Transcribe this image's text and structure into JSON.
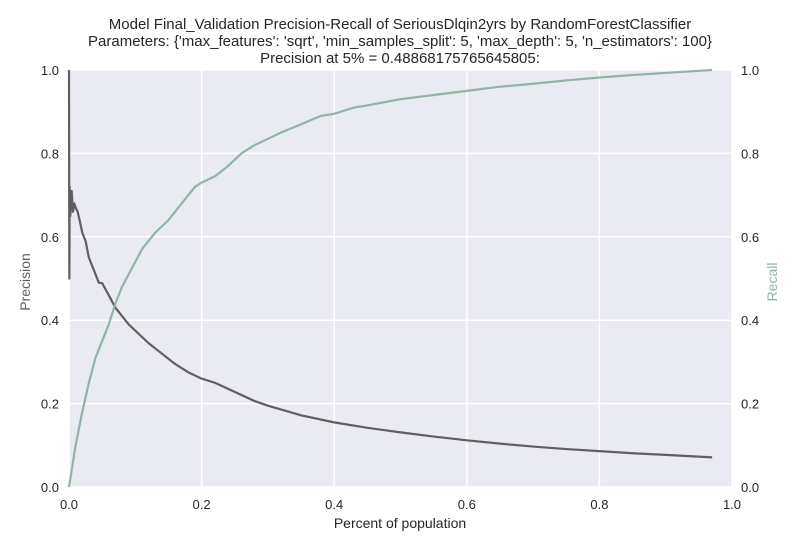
{
  "chart_data": {
    "type": "line",
    "title_lines": [
      "Model Final_Validation Precision-Recall of SeriousDlqin2yrs by RandomForestClassifier",
      "Parameters: {'max_features': 'sqrt', 'min_samples_split': 5, 'max_depth': 5, 'n_estimators': 100}",
      "Precision at 5% = 0.48868175765645805:"
    ],
    "xlabel": "Percent of population",
    "ylabel_left": "Precision",
    "ylabel_right": "Recall",
    "xlim": [
      0.0,
      1.0
    ],
    "ylim_left": [
      0.0,
      1.0
    ],
    "ylim_right": [
      0.0,
      1.0
    ],
    "x_ticks": [
      "0.0",
      "0.2",
      "0.4",
      "0.6",
      "0.8",
      "1.0"
    ],
    "y_ticks_left": [
      "0.0",
      "0.2",
      "0.4",
      "0.6",
      "0.8",
      "1.0"
    ],
    "y_ticks_right": [
      "0.0",
      "0.2",
      "0.4",
      "0.6",
      "0.8",
      "1.0"
    ],
    "grid": true,
    "background": "#eaeaf2",
    "series": [
      {
        "name": "Precision",
        "axis": "left",
        "color": "#5f5f5f",
        "points": [
          [
            0.0,
            1.0
          ],
          [
            0.0005,
            0.5
          ],
          [
            0.001,
            0.72
          ],
          [
            0.002,
            0.65
          ],
          [
            0.004,
            0.71
          ],
          [
            0.006,
            0.66
          ],
          [
            0.008,
            0.68
          ],
          [
            0.01,
            0.67
          ],
          [
            0.013,
            0.66
          ],
          [
            0.016,
            0.64
          ],
          [
            0.02,
            0.61
          ],
          [
            0.025,
            0.59
          ],
          [
            0.03,
            0.55
          ],
          [
            0.035,
            0.53
          ],
          [
            0.04,
            0.51
          ],
          [
            0.045,
            0.49
          ],
          [
            0.05,
            0.4887
          ],
          [
            0.06,
            0.46
          ],
          [
            0.07,
            0.43
          ],
          [
            0.08,
            0.41
          ],
          [
            0.09,
            0.39
          ],
          [
            0.1,
            0.375
          ],
          [
            0.12,
            0.345
          ],
          [
            0.14,
            0.32
          ],
          [
            0.16,
            0.295
          ],
          [
            0.18,
            0.275
          ],
          [
            0.2,
            0.26
          ],
          [
            0.22,
            0.25
          ],
          [
            0.25,
            0.228
          ],
          [
            0.28,
            0.206
          ],
          [
            0.3,
            0.195
          ],
          [
            0.35,
            0.172
          ],
          [
            0.4,
            0.155
          ],
          [
            0.45,
            0.142
          ],
          [
            0.5,
            0.131
          ],
          [
            0.55,
            0.121
          ],
          [
            0.6,
            0.112
          ],
          [
            0.65,
            0.104
          ],
          [
            0.7,
            0.097
          ],
          [
            0.75,
            0.091
          ],
          [
            0.8,
            0.086
          ],
          [
            0.85,
            0.081
          ],
          [
            0.9,
            0.077
          ],
          [
            0.97,
            0.071
          ]
        ]
      },
      {
        "name": "Recall",
        "axis": "right",
        "color": "#92b4a2",
        "points": [
          [
            0.0,
            0.0
          ],
          [
            0.005,
            0.05
          ],
          [
            0.01,
            0.1
          ],
          [
            0.02,
            0.18
          ],
          [
            0.03,
            0.25
          ],
          [
            0.04,
            0.31
          ],
          [
            0.05,
            0.35
          ],
          [
            0.06,
            0.39
          ],
          [
            0.07,
            0.44
          ],
          [
            0.08,
            0.48
          ],
          [
            0.09,
            0.51
          ],
          [
            0.1,
            0.54
          ],
          [
            0.11,
            0.57
          ],
          [
            0.12,
            0.59
          ],
          [
            0.13,
            0.61
          ],
          [
            0.15,
            0.64
          ],
          [
            0.17,
            0.68
          ],
          [
            0.19,
            0.72
          ],
          [
            0.2,
            0.73
          ],
          [
            0.22,
            0.745
          ],
          [
            0.24,
            0.77
          ],
          [
            0.26,
            0.8
          ],
          [
            0.28,
            0.82
          ],
          [
            0.3,
            0.835
          ],
          [
            0.32,
            0.85
          ],
          [
            0.35,
            0.87
          ],
          [
            0.38,
            0.89
          ],
          [
            0.4,
            0.895
          ],
          [
            0.43,
            0.91
          ],
          [
            0.45,
            0.915
          ],
          [
            0.5,
            0.93
          ],
          [
            0.55,
            0.94
          ],
          [
            0.6,
            0.95
          ],
          [
            0.65,
            0.96
          ],
          [
            0.7,
            0.967
          ],
          [
            0.75,
            0.975
          ],
          [
            0.8,
            0.982
          ],
          [
            0.85,
            0.988
          ],
          [
            0.9,
            0.993
          ],
          [
            0.95,
            0.998
          ],
          [
            0.97,
            1.0
          ]
        ]
      }
    ]
  }
}
